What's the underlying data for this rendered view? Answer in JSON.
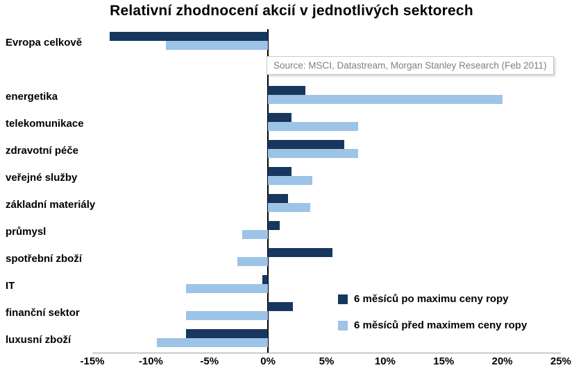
{
  "title": "Relativní zhodnocení akcií v jednotlivých sektorech",
  "source_note": "Source: MSCI, Datastream, Morgan Stanley Research (Feb 2011)",
  "colors": {
    "after_peak_dark_blue": "#17375E",
    "before_peak_light_blue": "#9DC3E6",
    "axis": "#000000",
    "source_text": "#7f7f7f"
  },
  "legend": [
    {
      "label": "6 měsíců po maximu ceny ropy",
      "color": "#17375E"
    },
    {
      "label": "6 měsíců před maximem ceny ropy",
      "color": "#9DC3E6"
    }
  ],
  "chart_data": {
    "type": "bar",
    "orientation": "horizontal",
    "title": "Relativní zhodnocení akcií v jednotlivých sektorech",
    "xlabel": "",
    "ylabel": "",
    "xlim": [
      -15,
      25
    ],
    "grid": false,
    "legend_position": "inside-lower-right",
    "categories": [
      "Evropa celkově",
      "",
      "energetika",
      "telekomunikace",
      "zdravotní péče",
      "veřejné služby",
      "základní materiály",
      "průmysl",
      "spotřební zboží",
      "IT",
      "finanční sektor",
      "luxusní zboží"
    ],
    "series": [
      {
        "name": "6 měsíců po maximu ceny ropy",
        "color": "#17375E",
        "values": [
          -13.5,
          null,
          3.2,
          2.0,
          6.5,
          2.0,
          1.7,
          1.0,
          5.5,
          -0.5,
          2.1,
          -7.0
        ]
      },
      {
        "name": "6 měsíců před maximem ceny ropy",
        "color": "#9DC3E6",
        "values": [
          -8.7,
          null,
          20.0,
          7.7,
          7.7,
          3.8,
          3.6,
          -2.2,
          -2.6,
          -7.0,
          -7.0,
          -9.5
        ]
      }
    ],
    "x_tick_values": [
      -15,
      -10,
      -5,
      0,
      5,
      10,
      15,
      20,
      25
    ],
    "x_tick_labels": [
      "-15%",
      "-10%",
      "-5%",
      "0%",
      "5%",
      "10%",
      "15%",
      "20%",
      "25%"
    ]
  }
}
